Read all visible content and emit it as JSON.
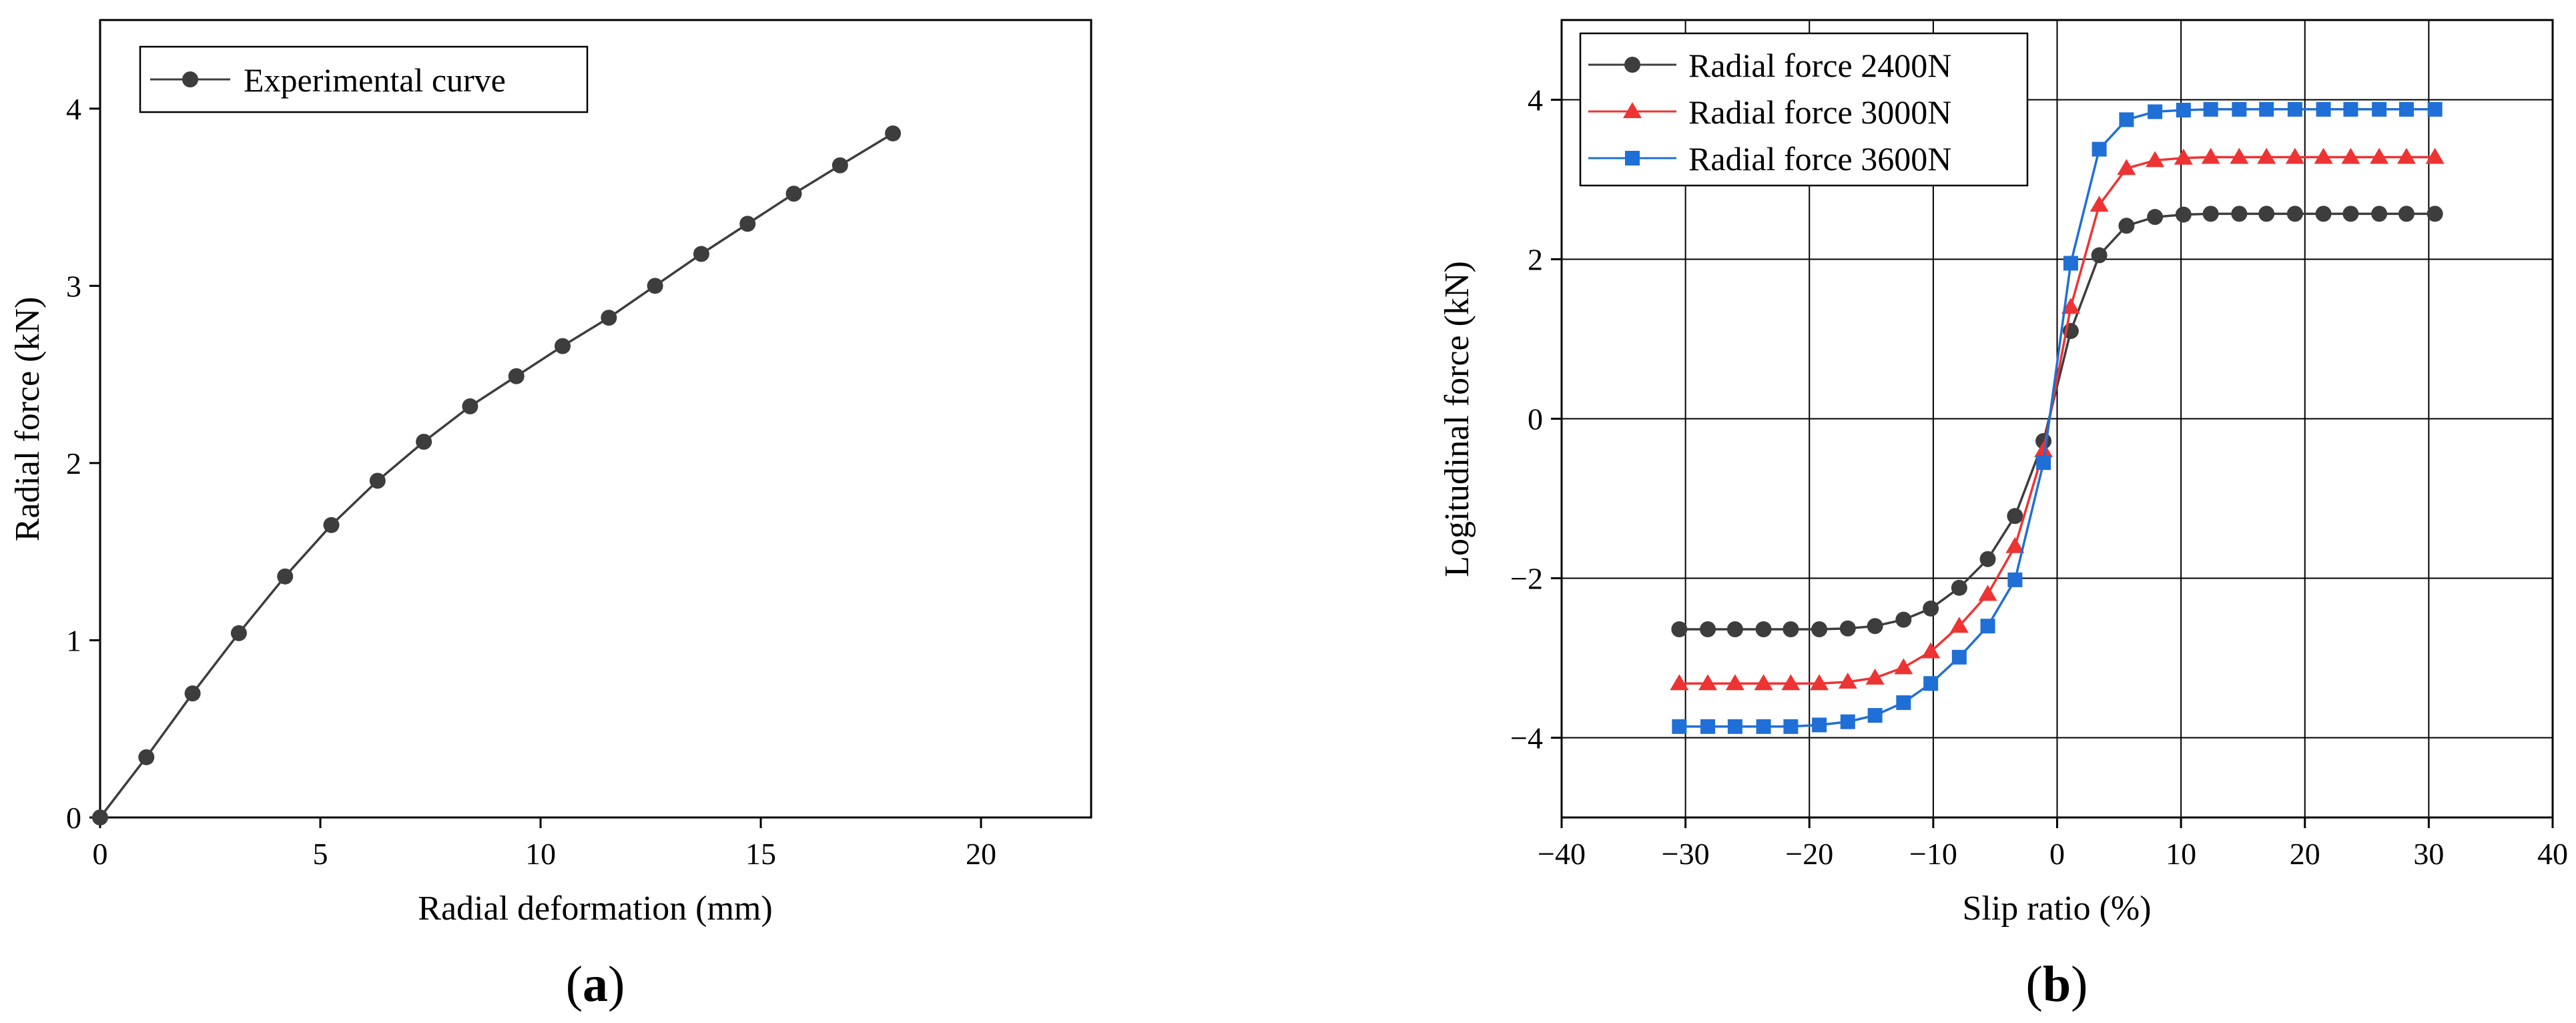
{
  "chart_data": [
    {
      "type": "line",
      "panel_label": "a",
      "title": "",
      "xlabel": "Radial deformation (mm)",
      "ylabel": "Radial force (kN)",
      "xlim": [
        0,
        22.5
      ],
      "ylim": [
        0,
        4.5
      ],
      "xticks": [
        0,
        5,
        10,
        15,
        20
      ],
      "yticks": [
        0,
        1,
        2,
        3,
        4
      ],
      "grid": false,
      "legend_position": "top-left",
      "series": [
        {
          "name": "Experimental curve",
          "color": "#3d3d3d",
          "marker": "circle",
          "x": [
            0,
            1.05,
            2.1,
            3.15,
            4.2,
            5.25,
            6.3,
            7.35,
            8.4,
            9.45,
            10.5,
            11.55,
            12.6,
            13.65,
            14.7,
            15.75,
            16.8,
            18.0
          ],
          "y": [
            0,
            0.34,
            0.7,
            1.04,
            1.36,
            1.65,
            1.9,
            2.12,
            2.32,
            2.49,
            2.66,
            2.82,
            3.0,
            3.18,
            3.35,
            3.52,
            3.68,
            3.86
          ]
        }
      ]
    },
    {
      "type": "line",
      "panel_label": "b",
      "title": "",
      "xlabel": "Slip ratio (%)",
      "ylabel": "Logitudinal force (kN)",
      "xlim": [
        -40,
        40
      ],
      "ylim": [
        -5,
        5
      ],
      "xticks": [
        -40,
        -30,
        -20,
        -10,
        0,
        10,
        20,
        30,
        40
      ],
      "yticks": [
        -4,
        -2,
        0,
        2,
        4
      ],
      "xtick_labels": [
        "−40",
        "−30",
        "−20",
        "−10",
        "0",
        "10",
        "20",
        "30",
        "40"
      ],
      "ytick_labels": [
        "−4",
        "−2",
        "0",
        "2",
        "4"
      ],
      "grid": true,
      "legend_position": "top-left",
      "x": [
        -30.5,
        -28.2,
        -26.0,
        -23.7,
        -21.5,
        -19.2,
        -16.9,
        -14.7,
        -12.4,
        -10.2,
        -7.9,
        -5.6,
        -3.4,
        -1.1,
        1.1,
        3.4,
        5.6,
        7.9,
        10.2,
        12.4,
        14.7,
        16.9,
        19.2,
        21.5,
        23.7,
        26.0,
        28.2,
        30.5
      ],
      "series": [
        {
          "name": "Radial force 2400N",
          "color": "#3d3d3d",
          "marker": "circle",
          "values": [
            -2.64,
            -2.64,
            -2.64,
            -2.64,
            -2.64,
            -2.64,
            -2.63,
            -2.6,
            -2.52,
            -2.38,
            -2.12,
            -1.76,
            -1.22,
            -0.28,
            1.1,
            2.05,
            2.42,
            2.53,
            2.56,
            2.57,
            2.57,
            2.57,
            2.57,
            2.57,
            2.57,
            2.57,
            2.57,
            2.57
          ]
        },
        {
          "name": "Radial force 3000N",
          "color": "#ee3333",
          "marker": "triangle",
          "values": [
            -3.32,
            -3.32,
            -3.32,
            -3.32,
            -3.32,
            -3.32,
            -3.3,
            -3.25,
            -3.12,
            -2.92,
            -2.6,
            -2.2,
            -1.6,
            -0.4,
            1.4,
            2.68,
            3.14,
            3.24,
            3.27,
            3.28,
            3.28,
            3.28,
            3.28,
            3.28,
            3.28,
            3.28,
            3.28,
            3.28
          ]
        },
        {
          "name": "Radial force 3600N",
          "color": "#1f6fd6",
          "marker": "square",
          "values": [
            -3.86,
            -3.86,
            -3.86,
            -3.86,
            -3.86,
            -3.84,
            -3.8,
            -3.72,
            -3.56,
            -3.32,
            -2.99,
            -2.6,
            -2.02,
            -0.55,
            1.95,
            3.38,
            3.75,
            3.85,
            3.87,
            3.88,
            3.88,
            3.88,
            3.88,
            3.88,
            3.88,
            3.88,
            3.88,
            3.88
          ]
        }
      ]
    }
  ]
}
